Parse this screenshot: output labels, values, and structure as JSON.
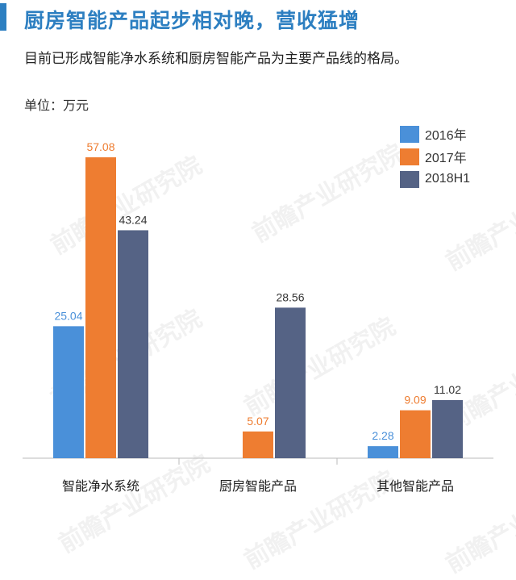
{
  "header": {
    "title": "厨房智能产品起步相对晚，营收猛增",
    "subtitle": "目前已形成智能净水系统和厨房智能产品为主要产品线的格局。",
    "unit": "单位：万元"
  },
  "colors": {
    "title": "#2d7fc1",
    "title_accent": "#2d7fc1",
    "axis": "#bbbbbb"
  },
  "watermark": "前瞻产业研究院",
  "chart_data": {
    "type": "bar",
    "categories": [
      "智能净水系统",
      "厨房智能产品",
      "其他智能产品"
    ],
    "series": [
      {
        "name": "2016年",
        "color": "#4a90d9",
        "values": [
          25.04,
          null,
          2.28
        ],
        "labels": [
          "25.04",
          "",
          "2.28"
        ]
      },
      {
        "name": "2017年",
        "color": "#ee7d31",
        "values": [
          57.08,
          5.07,
          9.09
        ],
        "labels": [
          "57.08",
          "5.07",
          "9.09"
        ]
      },
      {
        "name": "2018H1",
        "color": "#556385",
        "values": [
          43.24,
          28.56,
          11.02
        ],
        "labels": [
          "43.24",
          "28.56",
          "11.02"
        ]
      }
    ],
    "ylim": [
      0,
      60
    ],
    "grid": false,
    "legend_position": "top-right"
  }
}
